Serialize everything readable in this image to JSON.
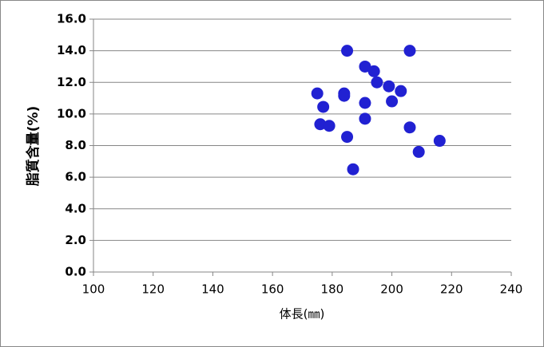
{
  "chart_data": {
    "type": "scatter",
    "xlabel": "体長(㎜)",
    "ylabel": "脂質含量(%)",
    "series": [
      {
        "color": "#2121d2",
        "x": [
          175,
          177,
          176,
          179,
          184,
          184,
          185,
          185,
          187,
          191,
          194,
          191,
          191,
          195,
          199,
          203,
          200,
          206,
          206,
          209,
          216
        ],
        "values": [
          11.3,
          10.45,
          9.35,
          9.25,
          11.3,
          11.15,
          14.0,
          8.55,
          6.5,
          13.0,
          12.7,
          10.7,
          9.7,
          12.0,
          11.75,
          11.45,
          10.8,
          14.0,
          9.15,
          7.6,
          8.3
        ]
      }
    ],
    "xlim": [
      100,
      240
    ],
    "xticks": [
      100,
      120,
      140,
      160,
      180,
      200,
      220,
      240
    ],
    "ylim": [
      0,
      16
    ],
    "yticks": [
      {
        "value": 0,
        "label": "0.0"
      },
      {
        "value": 2,
        "label": "2.0"
      },
      {
        "value": 4,
        "label": "4.0"
      },
      {
        "value": 6,
        "label": "6.0"
      },
      {
        "value": 8,
        "label": "8.0"
      },
      {
        "value": 10,
        "label": "10.0"
      },
      {
        "value": 12,
        "label": "12.0"
      },
      {
        "value": 14,
        "label": "14.0"
      },
      {
        "value": 16,
        "label": "16.0"
      }
    ],
    "grid": true
  }
}
